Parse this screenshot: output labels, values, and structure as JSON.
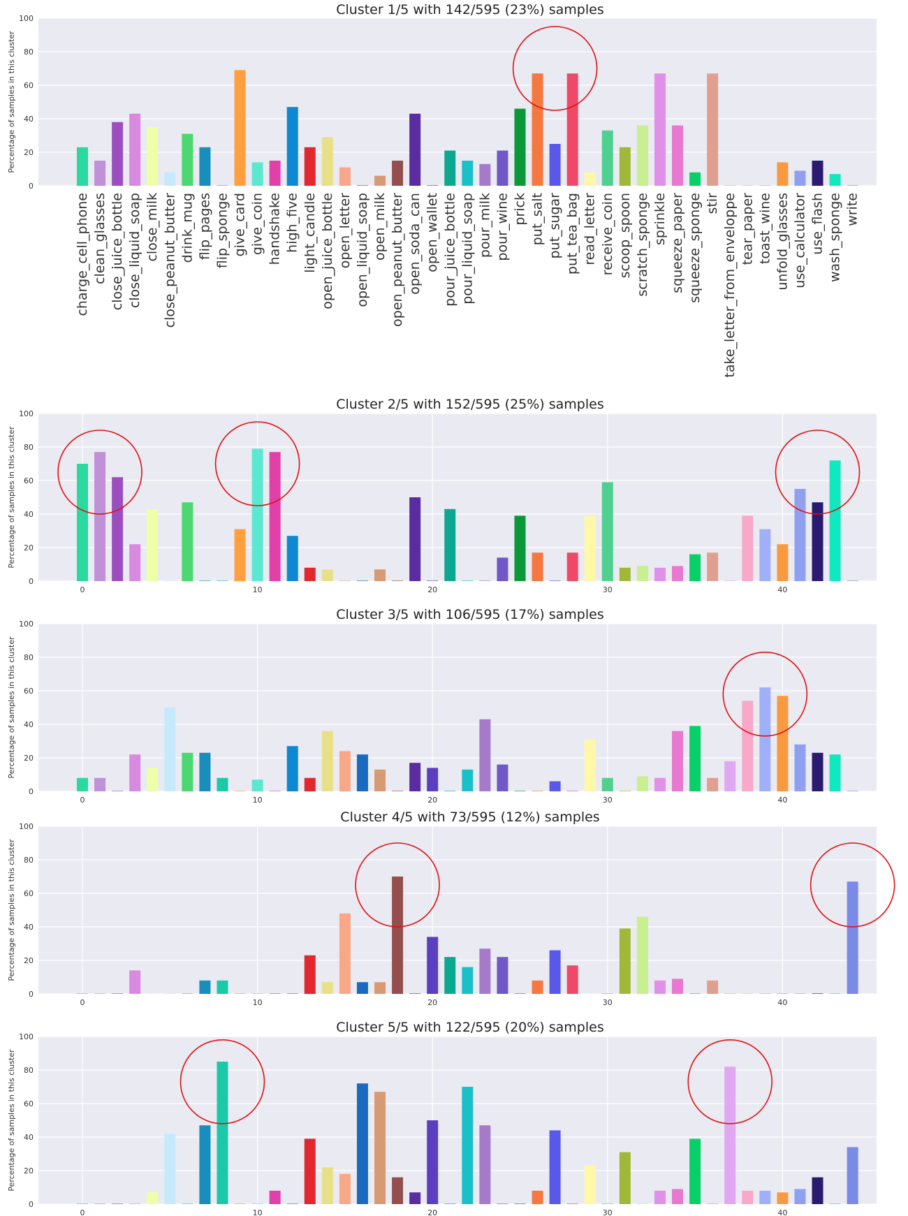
{
  "page": {
    "ylabel": "Percentage of samples in this cluster"
  },
  "categories": [
    "charge_cell_phone",
    "clean_glasses",
    "close_juice_bottle",
    "close_liquid_soap",
    "close_milk",
    "close_peanut_butter",
    "drink_mug",
    "flip_pages",
    "flip_sponge",
    "give_card",
    "give_coin",
    "handshake",
    "high_five",
    "light_candle",
    "open_juice_bottle",
    "open_letter",
    "open_liquid_soap",
    "open_milk",
    "open_peanut_butter",
    "open_soda_can",
    "open_wallet",
    "pour_juice_bottle",
    "pour_liquid_soap",
    "pour_milk",
    "pour_wine",
    "prick",
    "put_salt",
    "put_sugar",
    "put_tea_bag",
    "read_letter",
    "receive_coin",
    "scoop_spoon",
    "scratch_sponge",
    "sprinkle",
    "squeeze_paper",
    "squeeze_sponge",
    "stir",
    "take_letter_from_enveloppe",
    "tear_paper",
    "toast_wine",
    "unfold_glasses",
    "use_calculator",
    "use_flash",
    "wash_sponge",
    "write"
  ],
  "colors": [
    "#2bd9a0",
    "#c090d8",
    "#9b4fbf",
    "#d889e0",
    "#eeffa8",
    "#c6eafc",
    "#4cd870",
    "#178ebb",
    "#1ac9a8",
    "#ff9f3f",
    "#5ce8d0",
    "#e040a8",
    "#0e88d2",
    "#e0282e",
    "#e8e088",
    "#f8a888",
    "#1a6ac0",
    "#d89a72",
    "#954e4e",
    "#5a2ca0",
    "#5a40c0",
    "#0ca890",
    "#1ac0c8",
    "#a57ac8",
    "#7058c8",
    "#0c9838",
    "#f47840",
    "#5a58e8",
    "#f24868",
    "#fff8a8",
    "#50d090",
    "#a0b838",
    "#c8f090",
    "#e090e8",
    "#e878d0",
    "#08d068",
    "#e0a090",
    "#e0a8f0",
    "#f8a8c8",
    "#a0b0f8",
    "#fa9a40",
    "#90a0f0",
    "#2a1a70",
    "#10e8c0",
    "#7a8ae8"
  ],
  "chart_data": [
    {
      "type": "bar",
      "title": "Cluster 1/5 with 142/595 (23%) samples",
      "ylabel": "Percentage of samples in this cluster",
      "ylim": [
        0,
        100
      ],
      "yticks": [
        0,
        20,
        40,
        60,
        80,
        100
      ],
      "xtick_mode": "category_names",
      "values": [
        23,
        15,
        38,
        43,
        35,
        8,
        31,
        23,
        0,
        69,
        14,
        15,
        47,
        23,
        29,
        11,
        0,
        6,
        15,
        43,
        0,
        21,
        15,
        13,
        21,
        46,
        67,
        25,
        67,
        8,
        33,
        23,
        36,
        67,
        36,
        8,
        67,
        0,
        0,
        0,
        14,
        9,
        15,
        7,
        0
      ],
      "highlight_circles": [
        [
          27,
          70
        ]
      ]
    },
    {
      "type": "bar",
      "title": "Cluster 2/5 with 152/595 (25%) samples",
      "ylabel": "Percentage of samples in this cluster",
      "ylim": [
        0,
        100
      ],
      "yticks": [
        0,
        20,
        40,
        60,
        80,
        100
      ],
      "xtick_mode": "numeric",
      "xticks": [
        0,
        10,
        20,
        30,
        40
      ],
      "values": [
        70,
        77,
        62,
        22,
        43,
        0,
        47,
        0,
        0,
        31,
        79,
        77,
        27,
        8,
        7,
        0,
        0,
        7,
        0,
        50,
        0,
        43,
        0,
        0,
        14,
        39,
        17,
        0,
        17,
        39,
        59,
        8,
        9,
        8,
        9,
        16,
        17,
        0,
        39,
        31,
        22,
        55,
        47,
        72,
        0
      ],
      "highlight_circles": [
        [
          1,
          65
        ],
        [
          10,
          70
        ],
        [
          42,
          65
        ]
      ]
    },
    {
      "type": "bar",
      "title": "Cluster 3/5 with 106/595 (17%) samples",
      "ylabel": "Percentage of samples in this cluster",
      "ylim": [
        0,
        100
      ],
      "yticks": [
        0,
        20,
        40,
        60,
        80,
        100
      ],
      "xtick_mode": "numeric",
      "xticks": [
        0,
        10,
        20,
        30,
        40
      ],
      "values": [
        8,
        8,
        0,
        22,
        14,
        50,
        23,
        23,
        8,
        0,
        7,
        0,
        27,
        8,
        36,
        24,
        22,
        13,
        0,
        17,
        14,
        0,
        13,
        43,
        16,
        0,
        0,
        6,
        0,
        31,
        8,
        0,
        9,
        8,
        36,
        39,
        8,
        18,
        54,
        62,
        57,
        28,
        23,
        22,
        0
      ],
      "highlight_circles": [
        [
          39,
          58
        ]
      ]
    },
    {
      "type": "bar",
      "title": "Cluster 4/5 with 73/595 (12%) samples",
      "ylabel": "Percentage of samples in this cluster",
      "ylim": [
        0,
        100
      ],
      "yticks": [
        0,
        20,
        40,
        60,
        80,
        100
      ],
      "xtick_mode": "numeric",
      "xticks": [
        0,
        10,
        20,
        30,
        40
      ],
      "values": [
        0,
        0,
        0,
        14,
        0,
        0,
        0,
        8,
        8,
        0,
        0,
        0,
        0,
        23,
        7,
        48,
        7,
        7,
        70,
        0,
        34,
        22,
        16,
        27,
        22,
        0,
        8,
        26,
        17,
        0,
        0,
        39,
        46,
        8,
        9,
        0,
        8,
        0,
        0,
        0,
        0,
        0,
        0,
        0,
        67
      ],
      "highlight_circles": [
        [
          18,
          65
        ],
        [
          44,
          65
        ]
      ]
    },
    {
      "type": "bar",
      "title": "Cluster 5/5 with 122/595 (20%) samples",
      "ylabel": "Percentage of samples in this cluster",
      "ylim": [
        0,
        100
      ],
      "yticks": [
        0,
        20,
        40,
        60,
        80,
        100
      ],
      "xtick_mode": "numeric",
      "xticks": [
        0,
        10,
        20,
        30,
        40
      ],
      "values": [
        0,
        0,
        0,
        0,
        7,
        42,
        0,
        47,
        85,
        0,
        0,
        8,
        0,
        39,
        22,
        18,
        72,
        67,
        16,
        7,
        50,
        0,
        70,
        47,
        0,
        0,
        8,
        44,
        0,
        23,
        0,
        31,
        0,
        8,
        9,
        39,
        0,
        82,
        8,
        8,
        7,
        9,
        16,
        0,
        34
      ],
      "highlight_circles": [
        [
          8,
          73
        ],
        [
          37,
          73
        ]
      ]
    }
  ]
}
